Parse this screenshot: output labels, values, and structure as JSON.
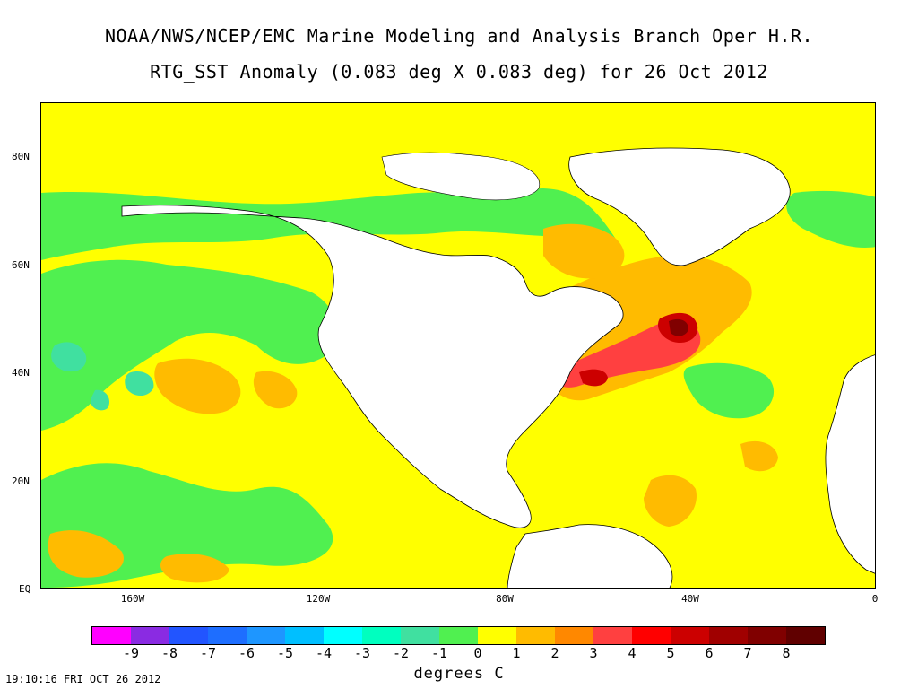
{
  "header": {
    "title_line1": "NOAA/NWS/NCEP/EMC Marine Modeling and Analysis Branch Oper H.R.",
    "title_line2": "RTG_SST Anomaly (0.083 deg X 0.083 deg) for 26 Oct 2012"
  },
  "map": {
    "lat_labels": [
      "80N",
      "60N",
      "40N",
      "20N",
      "EQ"
    ],
    "lon_labels": [
      "160W",
      "120W",
      "80W",
      "40W",
      "0"
    ],
    "land_color": "#ffffff",
    "ocean_background_color": "#ffff00"
  },
  "legend": {
    "colors": [
      "#ff00ff",
      "#8a2be2",
      "#2255ff",
      "#1e6eff",
      "#1e96ff",
      "#00bfff",
      "#00ffff",
      "#00ffbf",
      "#40e0a0",
      "#50f050",
      "#ffff00",
      "#ffbb00",
      "#ff8800",
      "#ff4040",
      "#ff0000",
      "#cc0000",
      "#a00000",
      "#800000",
      "#600000"
    ],
    "ticks": [
      "-9",
      "-8",
      "-7",
      "-6",
      "-5",
      "-4",
      "-3",
      "-2",
      "-1",
      "0",
      "1",
      "2",
      "3",
      "4",
      "5",
      "6",
      "7",
      "8"
    ],
    "units": "degrees C"
  },
  "footer": {
    "timestamp": "19:10:16  FRI OCT 26 2012"
  }
}
